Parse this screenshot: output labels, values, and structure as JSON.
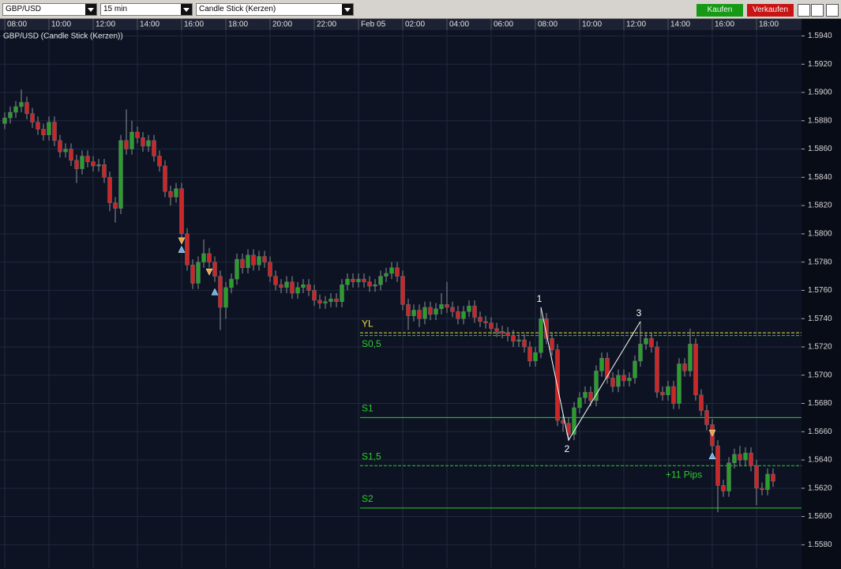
{
  "toolbar": {
    "symbol": "GBP/USD",
    "interval": "15 min",
    "chart_style": "Candle Stick (Kerzen)",
    "buy": "Kaufen",
    "sell": "Verkaufen"
  },
  "chart_data": {
    "type": "candlestick",
    "title": "GBP/USD (Candle Stick (Kerzen))",
    "up_color": "#2a9e2a",
    "down_color": "#cc2626",
    "grid": true,
    "ylim": [
      1.5564,
      1.5952
    ],
    "yticks": [
      {
        "value": 1.594,
        "label": "1.5940"
      },
      {
        "value": 1.592,
        "label": "1.5920"
      },
      {
        "value": 1.59,
        "label": "1.5900"
      },
      {
        "value": 1.588,
        "label": "1.5880"
      },
      {
        "value": 1.586,
        "label": "1.5860"
      },
      {
        "value": 1.584,
        "label": "1.5840"
      },
      {
        "value": 1.582,
        "label": "1.5820"
      },
      {
        "value": 1.58,
        "label": "1.5800"
      },
      {
        "value": 1.578,
        "label": "1.5780"
      },
      {
        "value": 1.576,
        "label": "1.5760"
      },
      {
        "value": 1.574,
        "label": "1.5740"
      },
      {
        "value": 1.572,
        "label": "1.5720"
      },
      {
        "value": 1.57,
        "label": "1.5700"
      },
      {
        "value": 1.568,
        "label": "1.5680"
      },
      {
        "value": 1.566,
        "label": "1.5660"
      },
      {
        "value": 1.564,
        "label": "1.5640"
      },
      {
        "value": 1.562,
        "label": "1.5620"
      },
      {
        "value": 1.56,
        "label": "1.5600"
      },
      {
        "value": 1.558,
        "label": "1.5580"
      }
    ],
    "categories": [
      "08:00",
      null,
      null,
      null,
      null,
      null,
      null,
      null,
      "10:00",
      null,
      null,
      null,
      null,
      null,
      null,
      null,
      "12:00",
      null,
      null,
      null,
      null,
      null,
      null,
      null,
      "14:00",
      null,
      null,
      null,
      null,
      null,
      null,
      null,
      "16:00",
      null,
      null,
      null,
      null,
      null,
      null,
      null,
      "18:00",
      null,
      null,
      null,
      null,
      null,
      null,
      null,
      "20:00",
      null,
      null,
      null,
      null,
      null,
      null,
      null,
      "22:00",
      null,
      null,
      null,
      null,
      null,
      null,
      null,
      "Feb 05",
      null,
      null,
      null,
      null,
      null,
      null,
      null,
      "02:00",
      null,
      null,
      null,
      null,
      null,
      null,
      null,
      "04:00",
      null,
      null,
      null,
      null,
      null,
      null,
      null,
      "06:00",
      null,
      null,
      null,
      null,
      null,
      null,
      null,
      "08:00",
      null,
      null,
      null,
      null,
      null,
      null,
      null,
      "10:00",
      null,
      null,
      null,
      null,
      null,
      null,
      null,
      "12:00",
      null,
      null,
      null,
      null,
      null,
      null,
      null,
      "14:00",
      null,
      null,
      null,
      null,
      null,
      null,
      null,
      "16:00",
      null,
      null,
      null,
      null,
      null,
      null,
      null,
      "18:00",
      null,
      null,
      null
    ],
    "open": [
      1.5878,
      1.5882,
      1.5886,
      1.589,
      1.5893,
      1.5885,
      1.5879,
      1.5874,
      1.587,
      1.5879,
      1.5866,
      1.5858,
      1.586,
      1.5852,
      1.5846,
      1.5855,
      1.5851,
      1.5848,
      1.5849,
      1.584,
      1.5822,
      1.5818,
      1.5866,
      1.586,
      1.5872,
      1.5868,
      1.5862,
      1.5866,
      1.5855,
      1.5848,
      1.583,
      1.5826,
      1.5832,
      1.58,
      1.5778,
      1.5765,
      1.578,
      1.5786,
      1.578,
      1.577,
      1.5748,
      1.5762,
      1.5768,
      1.5782,
      1.5776,
      1.5785,
      1.5778,
      1.5784,
      1.578,
      1.577,
      1.5764,
      1.5762,
      1.5766,
      1.5758,
      1.5762,
      1.5764,
      1.576,
      1.5753,
      1.5751,
      1.5752,
      1.5754,
      1.5752,
      1.5764,
      1.5768,
      1.5766,
      1.5768,
      1.5766,
      1.5763,
      1.5764,
      1.577,
      1.5772,
      1.5776,
      1.577,
      1.575,
      1.5742,
      1.5746,
      1.574,
      1.5748,
      1.5743,
      1.5747,
      1.575,
      1.5748,
      1.5745,
      1.574,
      1.5745,
      1.5749,
      1.5741,
      1.5738,
      1.5737,
      1.5733,
      1.5731,
      1.573,
      1.5728,
      1.5724,
      1.5725,
      1.572,
      1.571,
      1.5716,
      1.574,
      1.5726,
      1.5718,
      1.5668,
      1.5666,
      1.5658,
      1.5677,
      1.5684,
      1.5688,
      1.5682,
      1.5703,
      1.5712,
      1.5698,
      1.5692,
      1.57,
      1.5696,
      1.5698,
      1.571,
      1.5722,
      1.5726,
      1.572,
      1.5688,
      1.5686,
      1.5692,
      1.568,
      1.5708,
      1.5703,
      1.5722,
      1.5686,
      1.5675,
      1.5665,
      1.565,
      1.5622,
      1.5618,
      1.5638,
      1.5644,
      1.564,
      1.5645,
      1.5636,
      1.562,
      1.5619,
      1.563
    ],
    "high": [
      1.5886,
      1.589,
      1.5894,
      1.5902,
      1.5897,
      1.5889,
      1.5883,
      1.5878,
      1.5883,
      1.5883,
      1.587,
      1.5864,
      1.5864,
      1.5856,
      1.5859,
      1.5859,
      1.5855,
      1.5853,
      1.5853,
      1.5844,
      1.5826,
      1.587,
      1.5888,
      1.588,
      1.5876,
      1.5872,
      1.587,
      1.587,
      1.5859,
      1.5852,
      1.5834,
      1.5836,
      1.5836,
      1.5804,
      1.5782,
      1.5784,
      1.5796,
      1.579,
      1.5784,
      1.5774,
      1.5766,
      1.5772,
      1.5786,
      1.5786,
      1.5789,
      1.5789,
      1.5788,
      1.5788,
      1.5784,
      1.5774,
      1.5768,
      1.577,
      1.577,
      1.5766,
      1.5768,
      1.5768,
      1.5764,
      1.5757,
      1.5756,
      1.5758,
      1.5758,
      1.5768,
      1.5772,
      1.5772,
      1.5772,
      1.5772,
      1.577,
      1.5768,
      1.5774,
      1.5776,
      1.578,
      1.578,
      1.5774,
      1.5754,
      1.575,
      1.575,
      1.5752,
      1.5752,
      1.5751,
      1.5758,
      1.5766,
      1.5752,
      1.5749,
      1.5749,
      1.5753,
      1.5753,
      1.5745,
      1.5742,
      1.5741,
      1.5737,
      1.5735,
      1.5734,
      1.5732,
      1.5729,
      1.5729,
      1.5724,
      1.572,
      1.5748,
      1.5744,
      1.573,
      1.5722,
      1.5672,
      1.567,
      1.5681,
      1.5688,
      1.5692,
      1.5692,
      1.5707,
      1.5716,
      1.5716,
      1.5702,
      1.5704,
      1.5704,
      1.5702,
      1.5714,
      1.5738,
      1.573,
      1.573,
      1.5724,
      1.5692,
      1.5696,
      1.5696,
      1.5712,
      1.5712,
      1.5733,
      1.5726,
      1.569,
      1.5679,
      1.5669,
      1.5654,
      1.5626,
      1.5642,
      1.5648,
      1.565,
      1.5649,
      1.5649,
      1.564,
      1.5624,
      1.5634,
      1.5634
    ],
    "low": [
      1.5874,
      1.5878,
      1.5882,
      1.5886,
      1.5881,
      1.5875,
      1.587,
      1.5866,
      1.5866,
      1.5862,
      1.5854,
      1.5854,
      1.5848,
      1.5836,
      1.5842,
      1.5847,
      1.5844,
      1.5844,
      1.5836,
      1.5816,
      1.5808,
      1.5814,
      1.5856,
      1.5856,
      1.5864,
      1.5858,
      1.5858,
      1.5851,
      1.5844,
      1.5826,
      1.582,
      1.5822,
      1.5796,
      1.5774,
      1.5761,
      1.5761,
      1.5776,
      1.5776,
      1.5766,
      1.5732,
      1.574,
      1.5758,
      1.5764,
      1.5772,
      1.5772,
      1.5774,
      1.5774,
      1.5776,
      1.5766,
      1.576,
      1.5758,
      1.5758,
      1.5754,
      1.5754,
      1.5758,
      1.5756,
      1.5749,
      1.5747,
      1.5747,
      1.5748,
      1.5748,
      1.5748,
      1.576,
      1.5762,
      1.5762,
      1.5762,
      1.5759,
      1.5759,
      1.576,
      1.5766,
      1.5768,
      1.5766,
      1.5746,
      1.5732,
      1.5738,
      1.5734,
      1.5736,
      1.5739,
      1.5739,
      1.5743,
      1.5744,
      1.5741,
      1.5736,
      1.5736,
      1.5741,
      1.5737,
      1.5734,
      1.5733,
      1.5729,
      1.5727,
      1.5726,
      1.5724,
      1.572,
      1.572,
      1.5716,
      1.5706,
      1.5706,
      1.5712,
      1.5722,
      1.5714,
      1.5664,
      1.566,
      1.5654,
      1.5654,
      1.5673,
      1.568,
      1.5678,
      1.5678,
      1.5699,
      1.5694,
      1.5688,
      1.5688,
      1.5692,
      1.5692,
      1.5694,
      1.5706,
      1.5718,
      1.5716,
      1.5684,
      1.5682,
      1.5682,
      1.5676,
      1.5676,
      1.5699,
      1.5699,
      1.5682,
      1.5671,
      1.5661,
      1.5646,
      1.5603,
      1.5614,
      1.5614,
      1.5634,
      1.5636,
      1.5636,
      1.5632,
      1.5608,
      1.5615,
      1.5615,
      1.5621
    ],
    "close": [
      1.5882,
      1.5886,
      1.589,
      1.5893,
      1.5885,
      1.5879,
      1.5874,
      1.587,
      1.5879,
      1.5866,
      1.5858,
      1.586,
      1.5852,
      1.5846,
      1.5855,
      1.5851,
      1.5848,
      1.5849,
      1.584,
      1.5822,
      1.5818,
      1.5866,
      1.586,
      1.5872,
      1.5868,
      1.5862,
      1.5866,
      1.5855,
      1.5848,
      1.583,
      1.5826,
      1.5832,
      1.58,
      1.5778,
      1.5765,
      1.578,
      1.5786,
      1.578,
      1.577,
      1.5748,
      1.5762,
      1.5768,
      1.5782,
      1.5776,
      1.5785,
      1.5778,
      1.5784,
      1.578,
      1.577,
      1.5764,
      1.5762,
      1.5766,
      1.5758,
      1.5762,
      1.5764,
      1.576,
      1.5753,
      1.5751,
      1.5752,
      1.5754,
      1.5752,
      1.5764,
      1.5768,
      1.5766,
      1.5768,
      1.5766,
      1.5763,
      1.5764,
      1.577,
      1.5772,
      1.5776,
      1.577,
      1.575,
      1.5742,
      1.5746,
      1.574,
      1.5748,
      1.5743,
      1.5747,
      1.575,
      1.5748,
      1.5745,
      1.574,
      1.5745,
      1.5749,
      1.5741,
      1.5738,
      1.5737,
      1.5733,
      1.5731,
      1.573,
      1.5728,
      1.5724,
      1.5725,
      1.572,
      1.571,
      1.5716,
      1.574,
      1.5726,
      1.5718,
      1.5668,
      1.5666,
      1.5658,
      1.5677,
      1.5684,
      1.5688,
      1.5682,
      1.5703,
      1.5712,
      1.5698,
      1.5692,
      1.57,
      1.5696,
      1.5698,
      1.571,
      1.5722,
      1.5726,
      1.572,
      1.5688,
      1.5686,
      1.5692,
      1.568,
      1.5708,
      1.5703,
      1.5722,
      1.5686,
      1.5675,
      1.5665,
      1.565,
      1.5622,
      1.5618,
      1.5638,
      1.5644,
      1.564,
      1.5645,
      1.5636,
      1.562,
      1.5619,
      1.563,
      1.5625
    ],
    "levels": [
      {
        "label": "YL",
        "value": 1.573,
        "color": "#e6e040",
        "dashed": true
      },
      {
        "label": "S0,5",
        "value": 1.5728,
        "color": "#2ecc2e",
        "dashed": true
      },
      {
        "label": "S1",
        "value": 1.567,
        "color": "#2ecc2e",
        "dashed": false
      },
      {
        "label": "S1,5",
        "value": 1.5636,
        "color": "#2ecc2e",
        "dashed": true
      },
      {
        "label": "S2",
        "value": 1.5606,
        "color": "#2ecc2e",
        "dashed": false
      }
    ],
    "pattern": {
      "color": "#ffffff",
      "points": [
        {
          "label": "1",
          "index": 97,
          "value": 1.5748
        },
        {
          "label": "2",
          "index": 102,
          "value": 1.5654
        },
        {
          "label": "3",
          "index": 115,
          "value": 1.5738
        }
      ]
    },
    "signals": [
      {
        "index": 32,
        "direction": "down",
        "value": 1.5795,
        "color": "#f2a23c"
      },
      {
        "index": 32,
        "direction": "up",
        "value": 1.5789,
        "color": "#5fb4ea"
      },
      {
        "index": 37,
        "direction": "down",
        "value": 1.5773,
        "color": "#f2a23c"
      },
      {
        "index": 38,
        "direction": "up",
        "value": 1.5759,
        "color": "#5fb4ea"
      },
      {
        "index": 128,
        "direction": "down",
        "value": 1.5659,
        "color": "#f2a23c"
      },
      {
        "index": 128,
        "direction": "up",
        "value": 1.5643,
        "color": "#5fb4ea"
      }
    ],
    "annotations": [
      {
        "text": "+11 Pips",
        "color": "#2ecc2e"
      }
    ]
  }
}
